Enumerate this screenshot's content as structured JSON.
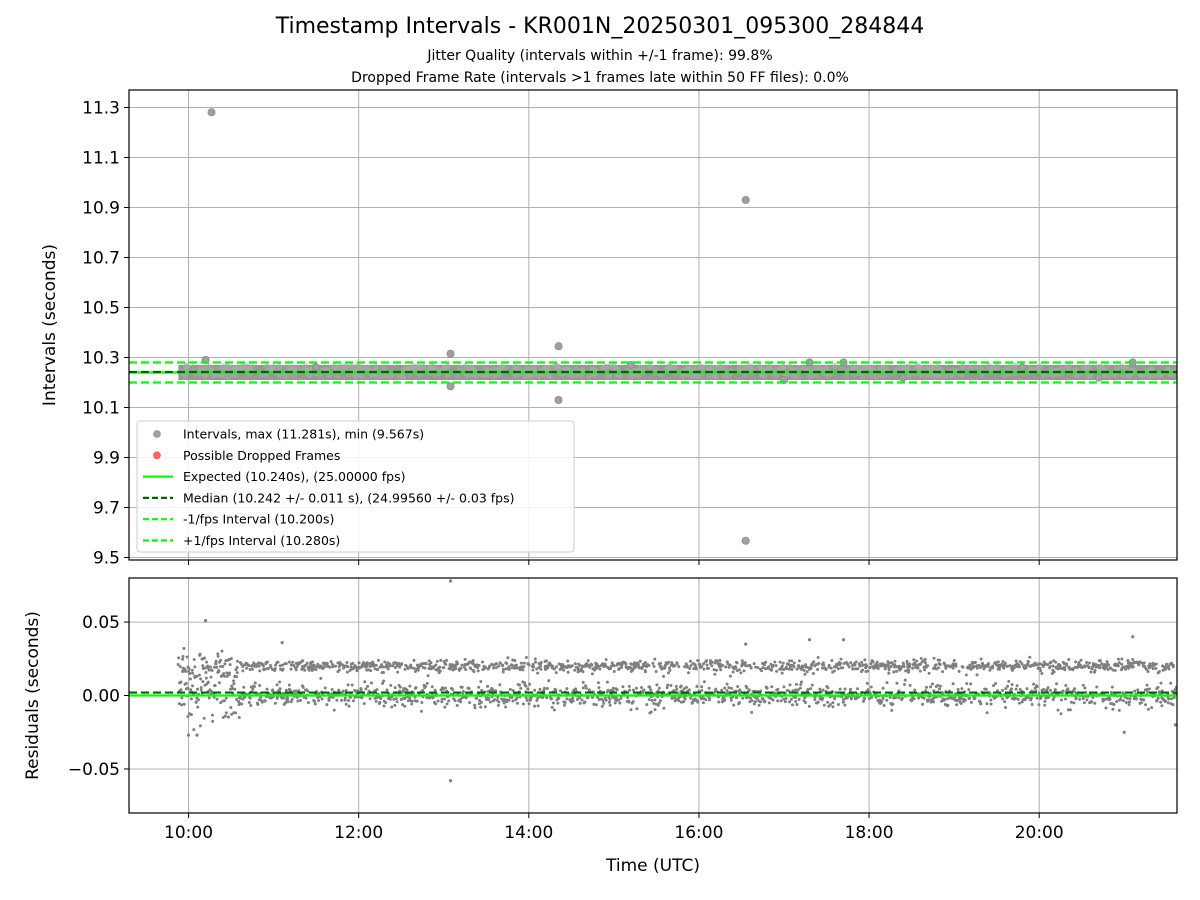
{
  "chart_data": [
    {
      "type": "scatter",
      "title": "Timestamp Intervals - KR001N_20250301_095300_284844",
      "subtitle_lines": [
        "Jitter Quality (intervals within +/-1 frame): 99.8%",
        "Dropped Frame Rate (intervals >1 frames late within 50 FF files): 0.0%"
      ],
      "xlabel": "",
      "ylabel": "Intervals (seconds)",
      "x_unit": "hours UTC",
      "xlim": [
        9.3,
        21.62
      ],
      "ylim": [
        9.49,
        11.37
      ],
      "yticks": [
        9.5,
        9.7,
        9.9,
        10.1,
        10.3,
        10.5,
        10.7,
        10.9,
        11.1,
        11.3
      ],
      "ytick_labels": [
        "9.5",
        "9.7",
        "9.9",
        "10.1",
        "10.3",
        "10.5",
        "10.7",
        "10.9",
        "11.1",
        "11.3"
      ],
      "grid": true,
      "band": {
        "x_start": 9.88,
        "x_end": 21.62,
        "y_low": 10.21,
        "y_high": 10.27
      },
      "points": [
        [
          10.27,
          11.281
        ],
        [
          16.55,
          10.93
        ],
        [
          16.55,
          9.567
        ],
        [
          13.08,
          10.315
        ],
        [
          13.08,
          10.185
        ],
        [
          14.35,
          10.345
        ],
        [
          14.35,
          10.13
        ],
        [
          10.2,
          10.29
        ],
        [
          10.05,
          10.25
        ],
        [
          11.5,
          10.26
        ],
        [
          12.6,
          10.23
        ],
        [
          15.2,
          10.27
        ],
        [
          17.0,
          10.21
        ],
        [
          17.3,
          10.28
        ],
        [
          17.7,
          10.28
        ],
        [
          18.4,
          10.22
        ],
        [
          19.8,
          10.26
        ],
        [
          21.1,
          10.28
        ],
        [
          20.7,
          10.22
        ]
      ],
      "lines": [
        {
          "name": "Expected (10.240s), (25.00000 fps)",
          "y": 10.24,
          "color": "#00ff00",
          "style": "solid"
        },
        {
          "name": "Median (10.242 +/- 0.011 s), (24.99560 +/- 0.03 fps)",
          "y": 10.242,
          "color": "#006400",
          "style": "dashed"
        },
        {
          "name": "-1/fps Interval (10.200s)",
          "y": 10.2,
          "color": "#00ff00",
          "style": "dashed"
        },
        {
          "name": "+1/fps Interval (10.280s)",
          "y": 10.28,
          "color": "#00ff00",
          "style": "dashed"
        }
      ],
      "legend": {
        "placement": "lower-left",
        "entries": [
          {
            "label": "Intervals, max (11.281s), min (9.567s)",
            "kind": "dot",
            "color": "#a0a0a0"
          },
          {
            "label": "Possible Dropped Frames",
            "kind": "dot",
            "color": "#ff6666"
          },
          {
            "label": "Expected (10.240s), (25.00000 fps)",
            "kind": "line",
            "color": "#00ff00",
            "style": "solid"
          },
          {
            "label": "Median (10.242 +/- 0.011 s), (24.99560 +/- 0.03 fps)",
            "kind": "line",
            "color": "#006400",
            "style": "dashed"
          },
          {
            "label": "-1/fps Interval (10.200s)",
            "kind": "line",
            "color": "#00ff00",
            "style": "dashed"
          },
          {
            "label": "+1/fps Interval (10.280s)",
            "kind": "line",
            "color": "#00ff00",
            "style": "dashed"
          }
        ]
      }
    },
    {
      "type": "scatter",
      "title": "",
      "xlabel": "Time (UTC)",
      "ylabel": "Residuals (seconds)",
      "xlim": [
        9.3,
        21.62
      ],
      "ylim": [
        -0.08,
        0.08
      ],
      "xticks": [
        10,
        12,
        14,
        16,
        18,
        20
      ],
      "xtick_labels": [
        "10:00",
        "12:00",
        "14:00",
        "16:00",
        "18:00",
        "20:00"
      ],
      "yticks": [
        -0.05,
        0.0,
        0.05
      ],
      "ytick_labels": [
        "−0.05",
        "0.00",
        "0.05"
      ],
      "grid": true,
      "clusters": [
        {
          "center": 0.0,
          "spread": 0.004
        },
        {
          "center": 0.02,
          "spread": 0.002
        }
      ],
      "outliers": [
        [
          13.08,
          0.078
        ],
        [
          13.08,
          -0.058
        ],
        [
          10.2,
          0.051
        ],
        [
          10.1,
          -0.027
        ],
        [
          10.0,
          -0.027
        ],
        [
          21.1,
          0.04
        ],
        [
          21.0,
          -0.025
        ],
        [
          17.7,
          0.038
        ],
        [
          17.3,
          0.038
        ],
        [
          21.6,
          -0.02
        ],
        [
          16.55,
          0.035
        ],
        [
          11.1,
          0.036
        ]
      ],
      "lines": [
        {
          "y": 0.0,
          "color": "#00ff00",
          "style": "solid"
        },
        {
          "y": 0.002,
          "color": "#006400",
          "style": "dashed"
        }
      ],
      "point_color": "#7f7f7f"
    }
  ]
}
